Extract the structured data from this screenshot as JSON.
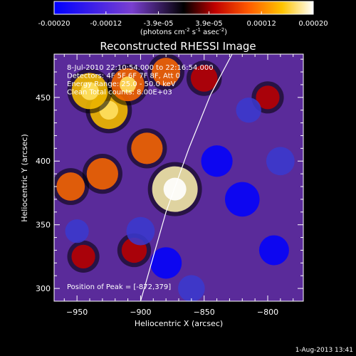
{
  "window": {
    "footer_date": "1-Aug-2013 13:41"
  },
  "colorbar": {
    "tick_labels": [
      "-0.00020",
      "-0.00012",
      "-3.9e-05",
      "3.9e-05",
      "0.00012",
      "0.00020"
    ],
    "ticks": [
      -0.0002,
      -0.00012,
      -3.9e-05,
      3.9e-05,
      0.00012,
      0.0002
    ],
    "range": [
      -0.0002,
      0.0002
    ],
    "unit_label": "(photons cm",
    "unit_sup1": "-2",
    "unit_mid": " s",
    "unit_sup2": "-1",
    "unit_tail": " asec",
    "unit_sup3": "-2",
    "unit_close": ")"
  },
  "chart_data": {
    "type": "heatmap",
    "title": "Reconstructed RHESSI Image",
    "xlabel": "Heliocentric X (arcsec)",
    "ylabel": "Heliocentric Y (arcsec)",
    "xlim": [
      -968,
      -772
    ],
    "ylim": [
      290,
      484
    ],
    "x_ticks": [
      -950,
      -900,
      -850,
      -800
    ],
    "y_ticks": [
      300,
      350,
      400,
      450
    ],
    "x_tick_labels": [
      "−950",
      "−900",
      "−850",
      "−800"
    ],
    "y_tick_labels": [
      "300",
      "350",
      "400",
      "450"
    ],
    "annotations": [
      "8-Jul-2010 22:10:54.000 to 22:16:54.000",
      "Detectors: 4F 5F 6F 7F 8F, Att 0",
      "Energy Range: 25.0 - 50.0 keV",
      "Clean    Total counts: 8.00E+03"
    ],
    "peak_label": "Position of Peak = [-872,379]",
    "peak": [
      -872,
      379
    ],
    "limb_curve": [
      [
        -900,
        290
      ],
      [
        -880,
        360
      ],
      [
        -862,
        410
      ],
      [
        -845,
        452
      ],
      [
        -828,
        484
      ]
    ],
    "grid": false,
    "colormap": [
      "#0000ff",
      "#6a3dba",
      "#000000",
      "#c00000",
      "#ff6a00",
      "#ffd400",
      "#ffffff"
    ],
    "sources": [
      {
        "x": -873,
        "y": 378,
        "level": 1.0
      },
      {
        "x": -925,
        "y": 440,
        "level": 0.75
      },
      {
        "x": -940,
        "y": 455,
        "level": 0.7
      },
      {
        "x": -910,
        "y": 460,
        "level": 0.6
      },
      {
        "x": -895,
        "y": 410,
        "level": 0.55
      },
      {
        "x": -955,
        "y": 380,
        "level": 0.45
      },
      {
        "x": -930,
        "y": 390,
        "level": 0.55
      },
      {
        "x": -880,
        "y": 470,
        "level": 0.45
      },
      {
        "x": -850,
        "y": 465,
        "level": 0.4
      },
      {
        "x": -905,
        "y": 330,
        "level": 0.35
      },
      {
        "x": -945,
        "y": 325,
        "level": 0.3
      },
      {
        "x": -800,
        "y": 450,
        "level": 0.3
      },
      {
        "x": -840,
        "y": 400,
        "level": -0.55
      },
      {
        "x": -820,
        "y": 370,
        "level": -0.65
      },
      {
        "x": -795,
        "y": 330,
        "level": -0.5
      },
      {
        "x": -880,
        "y": 320,
        "level": -0.55
      },
      {
        "x": -900,
        "y": 345,
        "level": -0.45
      },
      {
        "x": -860,
        "y": 300,
        "level": -0.4
      },
      {
        "x": -790,
        "y": 400,
        "level": -0.45
      },
      {
        "x": -950,
        "y": 345,
        "level": -0.3
      },
      {
        "x": -815,
        "y": 440,
        "level": -0.35
      }
    ]
  }
}
